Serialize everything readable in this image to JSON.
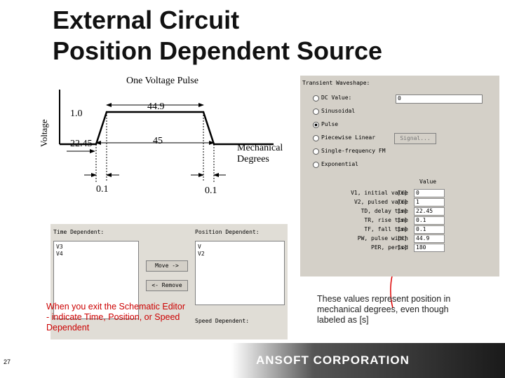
{
  "title": {
    "line1": "External Circuit",
    "line2": "Position Dependent Source"
  },
  "pulse_diagram": {
    "caption": "One Voltage Pulse",
    "y_label": "Voltage",
    "level": "1.0",
    "width_top": "44.9",
    "delay": "22.45",
    "width_base": "45",
    "x_label": "Mechanical Degrees",
    "rise": "0.1",
    "fall": "0.1"
  },
  "waveshape_dialog": {
    "heading": "Transient Waveshape:",
    "options": [
      "DC Value:",
      "Sinusoidal",
      "Pulse",
      "Piecewise Linear",
      "Single-frequency FM",
      "Exponential"
    ],
    "dc_value": "0",
    "button": "Signal...",
    "value_header": "Value",
    "params": [
      [
        "V1, initial value",
        "[V]",
        "0"
      ],
      [
        "V2, pulsed value",
        "[V]",
        "1"
      ],
      [
        "TD, delay time",
        "[s]",
        "22.45"
      ],
      [
        "TR, rise time",
        "[s]",
        "0.1"
      ],
      [
        "TF, fall time",
        "[s]",
        "0.1"
      ],
      [
        "PW, pulse width",
        "[s]",
        "44.9"
      ],
      [
        "PER, period",
        "[s]",
        "180"
      ]
    ]
  },
  "dependency_dialog": {
    "time_heading": "Time Dependent:",
    "time_items": [
      "V3",
      "V4"
    ],
    "position_heading": "Position Dependent:",
    "position_items": [
      "V",
      "V2"
    ],
    "move_button": "Move ->",
    "remove_button": "<- Remove",
    "speed_heading": "Speed Dependent:"
  },
  "annotations": {
    "left": "When you exit the Schematic Editor - indicate Time, Position, or Speed Dependent",
    "right": "These values represent position in mechanical degrees, even though labeled as [s]"
  },
  "footer": {
    "page_number": "27",
    "company": "ANSOFT CORPORATION"
  }
}
